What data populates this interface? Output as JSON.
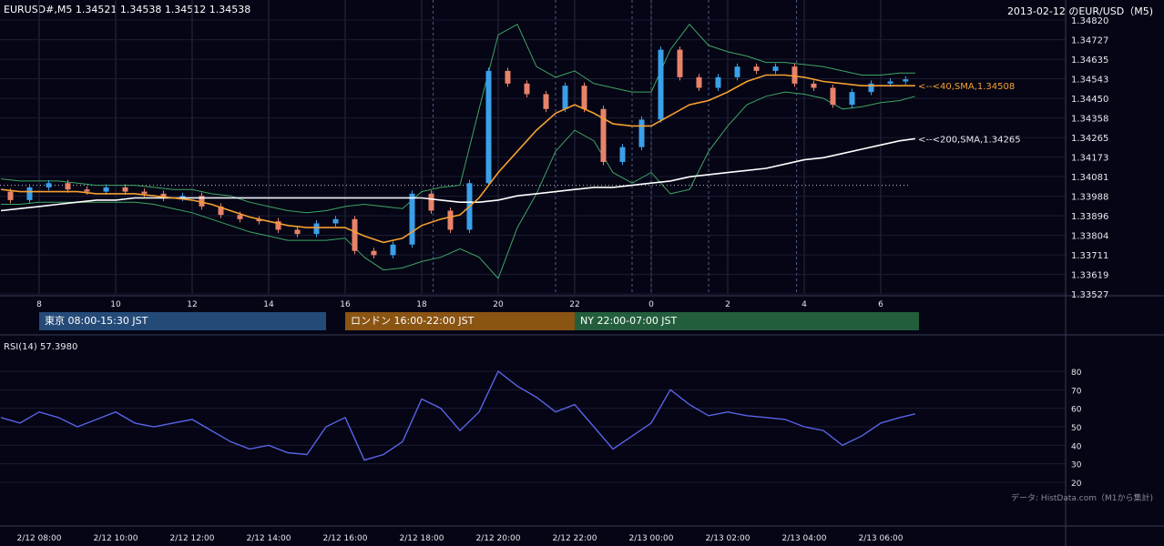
{
  "header": {
    "left": "EURUSD#,M5 1.34521 1.34538 1.34512 1.34538",
    "right": "2013-02-12 のEUR/USD（M5)"
  },
  "sessions": [
    {
      "label": "東京 08:00-15:30 JST",
      "color": "#244a78",
      "from": 8.0,
      "to": 15.5
    },
    {
      "label": "ロンドン 16:00-22:00 JST",
      "color": "#8a5412",
      "from": 16.0,
      "to": 22.0
    },
    {
      "label": "NY 22:00-07:00 JST",
      "color": "#235e3c",
      "from": 22.0,
      "to": 31.0
    }
  ],
  "rsi": {
    "label": "RSI(14) 57.3980",
    "ticks": [
      "80",
      "70",
      "60",
      "50",
      "40",
      "30",
      "20"
    ]
  },
  "source": "データ: HistData.com（M1から集計)",
  "indicators": {
    "sma40_label": "<--<40,SMA,1.34508",
    "sma200_label": "<--<200,SMA,1.34265",
    "sma40_color": "#f5a030",
    "sma200_color": "#ffffff"
  },
  "chart_data": {
    "type": "line",
    "price_axis": [
      "1.34820",
      "1.34727",
      "1.34635",
      "1.34543",
      "1.34450",
      "1.34358",
      "1.34265",
      "1.34173",
      "1.34081",
      "1.33988",
      "1.33896",
      "1.33804",
      "1.33711",
      "1.33619",
      "1.33527"
    ],
    "ylim": [
      1.33527,
      1.3482
    ],
    "hour_ticks": [
      "8",
      "10",
      "12",
      "14",
      "16",
      "18",
      "20",
      "22",
      "0",
      "2",
      "4",
      "6"
    ],
    "date_ticks": [
      "2/12 08:00",
      "2/12 10:00",
      "2/12 12:00",
      "2/12 14:00",
      "2/12 16:00",
      "2/12 18:00",
      "2/12 20:00",
      "2/12 22:00",
      "2/13 00:00",
      "2/13 02:00",
      "2/13 04:00",
      "2/13 06:00"
    ],
    "dotted_level": 1.3404,
    "x_hours": [
      7.0,
      7.5,
      8.0,
      8.5,
      9.0,
      9.5,
      10.0,
      10.5,
      11.0,
      11.5,
      12.0,
      12.5,
      13.0,
      13.5,
      14.0,
      14.5,
      15.0,
      15.5,
      16.0,
      16.5,
      17.0,
      17.5,
      18.0,
      18.5,
      19.0,
      19.5,
      20.0,
      20.5,
      21.0,
      21.5,
      22.0,
      22.5,
      23.0,
      23.5,
      24.0,
      24.5,
      25.0,
      25.5,
      26.0,
      26.5,
      27.0,
      27.5,
      28.0,
      28.5,
      29.0,
      29.5,
      30.0,
      30.5,
      30.9
    ],
    "close": [
      1.3401,
      1.3397,
      1.3403,
      1.3405,
      1.3402,
      1.3401,
      1.3403,
      1.3401,
      1.34,
      1.3398,
      1.3399,
      1.3394,
      1.339,
      1.3388,
      1.3387,
      1.3383,
      1.3381,
      1.3386,
      1.3388,
      1.3373,
      1.3371,
      1.3376,
      1.34,
      1.3392,
      1.3383,
      1.3405,
      1.3458,
      1.3452,
      1.3447,
      1.344,
      1.3451,
      1.344,
      1.3415,
      1.3422,
      1.3435,
      1.3468,
      1.3455,
      1.345,
      1.3455,
      1.346,
      1.3458,
      1.346,
      1.3452,
      1.345,
      1.3442,
      1.3448,
      1.3452,
      1.3453,
      1.3454
    ],
    "sma40": [
      1.3402,
      1.3401,
      1.3401,
      1.3401,
      1.3401,
      1.34,
      1.34,
      1.34,
      1.3399,
      1.3398,
      1.3397,
      1.3395,
      1.3392,
      1.3389,
      1.3387,
      1.3385,
      1.3384,
      1.3384,
      1.3384,
      1.338,
      1.3377,
      1.3379,
      1.3385,
      1.3388,
      1.339,
      1.3398,
      1.341,
      1.342,
      1.343,
      1.3438,
      1.3442,
      1.3438,
      1.3433,
      1.3432,
      1.3432,
      1.3437,
      1.3442,
      1.3444,
      1.3448,
      1.3453,
      1.3456,
      1.3456,
      1.3455,
      1.3453,
      1.3452,
      1.3451,
      1.3451,
      1.3451,
      1.3451
    ],
    "sma200": [
      1.3392,
      1.3393,
      1.3394,
      1.3395,
      1.3396,
      1.3397,
      1.3397,
      1.3398,
      1.3398,
      1.3398,
      1.3398,
      1.3398,
      1.3398,
      1.3398,
      1.3398,
      1.3398,
      1.3398,
      1.3398,
      1.3398,
      1.3398,
      1.3398,
      1.3398,
      1.3398,
      1.3397,
      1.3396,
      1.3396,
      1.3397,
      1.3399,
      1.34,
      1.3401,
      1.3402,
      1.3403,
      1.3403,
      1.3404,
      1.3405,
      1.3406,
      1.3408,
      1.3409,
      1.341,
      1.3411,
      1.3412,
      1.3414,
      1.3416,
      1.3417,
      1.3419,
      1.3421,
      1.3423,
      1.3425,
      1.3426
    ],
    "bb_upper": [
      1.3407,
      1.3406,
      1.3406,
      1.3406,
      1.3405,
      1.3404,
      1.3404,
      1.3404,
      1.3403,
      1.3402,
      1.3402,
      1.34,
      1.3399,
      1.3396,
      1.3394,
      1.3392,
      1.3391,
      1.3392,
      1.3394,
      1.3395,
      1.3394,
      1.3393,
      1.3401,
      1.3403,
      1.3404,
      1.344,
      1.3475,
      1.348,
      1.346,
      1.3455,
      1.3458,
      1.3452,
      1.345,
      1.3448,
      1.3448,
      1.3468,
      1.348,
      1.347,
      1.3467,
      1.3465,
      1.3462,
      1.3462,
      1.3461,
      1.346,
      1.3458,
      1.3456,
      1.3456,
      1.3457,
      1.3457
    ],
    "bb_lower": [
      1.3395,
      1.3395,
      1.3396,
      1.3396,
      1.3396,
      1.3396,
      1.3396,
      1.3396,
      1.3395,
      1.3393,
      1.3391,
      1.3388,
      1.3385,
      1.3382,
      1.338,
      1.3378,
      1.3378,
      1.3378,
      1.3379,
      1.337,
      1.3364,
      1.3365,
      1.3368,
      1.337,
      1.3374,
      1.337,
      1.336,
      1.3384,
      1.34,
      1.342,
      1.343,
      1.3425,
      1.341,
      1.3405,
      1.341,
      1.34,
      1.3402,
      1.342,
      1.3432,
      1.3442,
      1.3446,
      1.3448,
      1.3447,
      1.3445,
      1.344,
      1.3441,
      1.3443,
      1.3444,
      1.3446
    ],
    "rsi": [
      55,
      52,
      58,
      55,
      50,
      54,
      58,
      52,
      50,
      52,
      54,
      48,
      42,
      38,
      40,
      36,
      35,
      50,
      55,
      32,
      35,
      42,
      65,
      60,
      48,
      58,
      80,
      72,
      66,
      58,
      62,
      50,
      38,
      45,
      52,
      70,
      62,
      56,
      58,
      56,
      55,
      54,
      50,
      48,
      40,
      45,
      52,
      55,
      57
    ]
  }
}
